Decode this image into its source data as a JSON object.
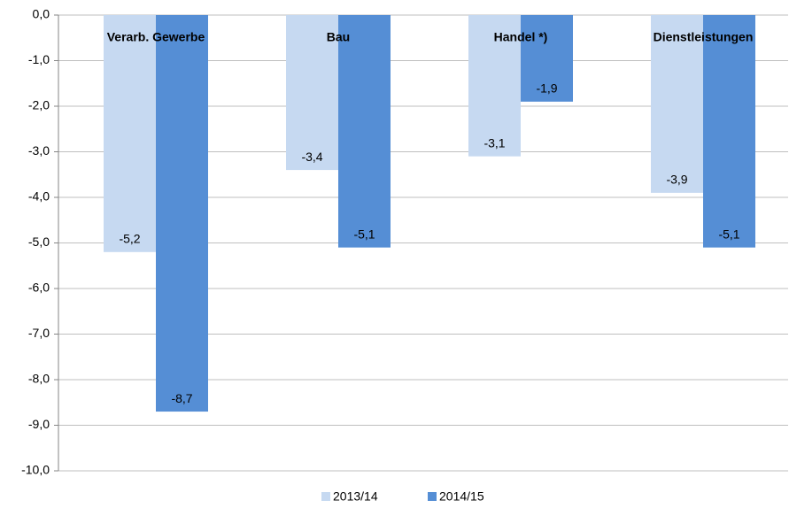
{
  "chart_data": {
    "type": "bar",
    "categories": [
      "Verarb. Gewerbe",
      "Bau",
      "Handel *)",
      "Dienstleistungen"
    ],
    "series": [
      {
        "name": "2013/14",
        "color": "#c6d9f1",
        "values": [
          -5.2,
          -3.4,
          -3.1,
          -3.9
        ],
        "value_labels": [
          "-5,2",
          "-3,4",
          "-3,1",
          "-3,9"
        ]
      },
      {
        "name": "2014/15",
        "color": "#558ed5",
        "values": [
          -8.7,
          -5.1,
          -1.9,
          -5.1
        ],
        "value_labels": [
          "-8,7",
          "-5,1",
          "-1,9",
          "-5,1"
        ]
      }
    ],
    "ylim": [
      -10,
      0
    ],
    "yticks": [
      {
        "value": 0,
        "label": "0,0"
      },
      {
        "value": -1,
        "label": "-1,0"
      },
      {
        "value": -2,
        "label": "-2,0"
      },
      {
        "value": -3,
        "label": "-3,0"
      },
      {
        "value": -4,
        "label": "-4,0"
      },
      {
        "value": -5,
        "label": "-5,0"
      },
      {
        "value": -6,
        "label": "-6,0"
      },
      {
        "value": -7,
        "label": "-7,0"
      },
      {
        "value": -8,
        "label": "-8,0"
      },
      {
        "value": -9,
        "label": "-9,0"
      },
      {
        "value": -10,
        "label": "-10,0"
      }
    ],
    "grid": true,
    "legend": "bottom"
  }
}
